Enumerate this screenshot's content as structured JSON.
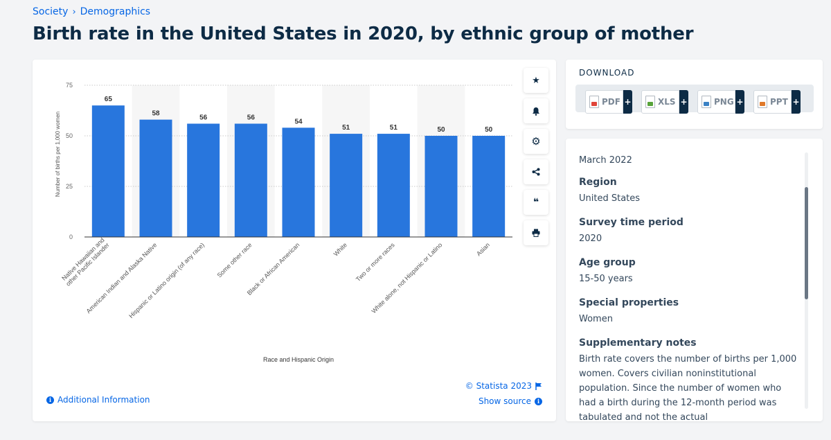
{
  "breadcrumb": {
    "item1": "Society",
    "sep": "›",
    "item2": "Demographics"
  },
  "page": {
    "title": "Birth rate in the United States in 2020, by ethnic group of mother"
  },
  "chart_data": {
    "type": "bar",
    "categories": [
      "Native Hawaiian and other Pacific Islander",
      "American Indian and Alaska Native",
      "Hispanic or Latino origin (of any race)",
      "Some other race",
      "Black or African American",
      "White",
      "Two or more races",
      "White alone, not Hispanic or Latino",
      "Asian"
    ],
    "category_lines": [
      [
        "Native Hawaiian and",
        "other Pacific Islander"
      ],
      [
        "American Indian and Alaska Native"
      ],
      [
        "Hispanic or Latino origin (of any race)"
      ],
      [
        "Some other race"
      ],
      [
        "Black or African American"
      ],
      [
        "White"
      ],
      [
        "Two or more races"
      ],
      [
        "White alone, not Hispanic or Latino"
      ],
      [
        "Asian"
      ]
    ],
    "values": [
      65,
      58,
      56,
      56,
      54,
      51,
      51,
      50,
      50
    ],
    "xlabel": "Race and Hispanic Origin",
    "ylabel": "Number of births per 1,000 women",
    "ylim": [
      0,
      75
    ],
    "yticks": [
      0,
      25,
      50,
      75
    ],
    "grid": true,
    "bar_color": "#2876dd",
    "alt_band_color": "#f6f6f6"
  },
  "chart_footer": {
    "copyright": "© Statista 2023",
    "show_source": "Show source",
    "additional_info": "Additional Information",
    "flag_icon": "flag-icon",
    "info_icon": "i"
  },
  "tools": [
    {
      "name": "star",
      "glyph": "★"
    },
    {
      "name": "bell",
      "glyph": "🔔"
    },
    {
      "name": "gear",
      "glyph": "⚙"
    },
    {
      "name": "share",
      "glyph": "share"
    },
    {
      "name": "quote",
      "glyph": "❝"
    },
    {
      "name": "print",
      "glyph": "print"
    }
  ],
  "download": {
    "title": "DOWNLOAD",
    "buttons": [
      {
        "label": "PDF",
        "plus": "+",
        "color": "#e0453a"
      },
      {
        "label": "XLS",
        "plus": "+",
        "color": "#57a33a"
      },
      {
        "label": "PNG",
        "plus": "+",
        "color": "#3b82c4"
      },
      {
        "label": "PPT",
        "plus": "+",
        "color": "#e07a2b"
      }
    ]
  },
  "info": {
    "date": "March 2022",
    "region_label": "Region",
    "region_value": "United States",
    "survey_label": "Survey time period",
    "survey_value": "2020",
    "age_label": "Age group",
    "age_value": "15-50 years",
    "special_label": "Special properties",
    "special_value": "Women",
    "notes_label": "Supplementary notes",
    "notes_value": "Birth rate covers the number of births per 1,000 women. Covers civilian noninstitutional population. Since the number of women who had a birth during the 12-month period was tabulated and not the actual"
  }
}
